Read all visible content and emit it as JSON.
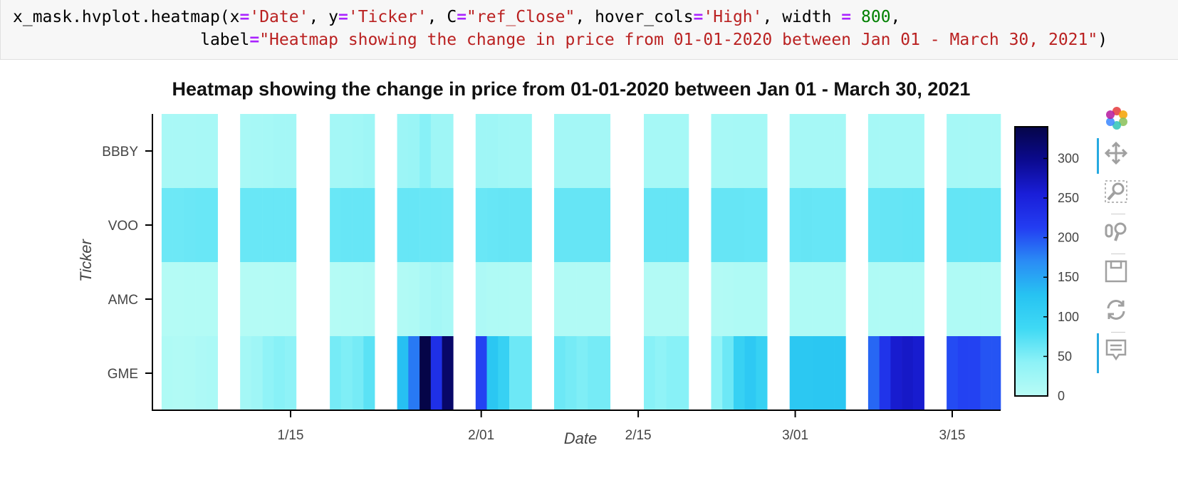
{
  "code": {
    "line1": [
      {
        "t": "x_mask.hvplot.heatmap(x",
        "c": ""
      },
      {
        "t": "=",
        "c": "op"
      },
      {
        "t": "'Date'",
        "c": "str"
      },
      {
        "t": ", y",
        "c": ""
      },
      {
        "t": "=",
        "c": "op"
      },
      {
        "t": "'Ticker'",
        "c": "str"
      },
      {
        "t": ", C",
        "c": ""
      },
      {
        "t": "=",
        "c": "op"
      },
      {
        "t": "\"ref_Close\"",
        "c": "str"
      },
      {
        "t": ", hover_cols",
        "c": ""
      },
      {
        "t": "=",
        "c": "op"
      },
      {
        "t": "'High'",
        "c": "str"
      },
      {
        "t": ", width ",
        "c": ""
      },
      {
        "t": "=",
        "c": "op"
      },
      {
        "t": " ",
        "c": ""
      },
      {
        "t": "800",
        "c": "num"
      },
      {
        "t": ",",
        "c": ""
      }
    ],
    "line2": [
      {
        "t": "                   label",
        "c": ""
      },
      {
        "t": "=",
        "c": "op"
      },
      {
        "t": "\"Heatmap showing the change in price from 01-01-2020 between Jan 01 - March 30, 2021\"",
        "c": "str"
      },
      {
        "t": ")",
        "c": ""
      }
    ]
  },
  "chart_data": {
    "type": "heatmap",
    "title": "Heatmap showing the change in price from 01-01-2020 between Jan 01 - March 30, 2021",
    "xlabel": "Date",
    "ylabel": "Ticker",
    "x_ticks": [
      "1/15",
      "2/01",
      "2/15",
      "3/01",
      "3/15"
    ],
    "y_categories": [
      "GME",
      "AMC",
      "VOO",
      "BBBY"
    ],
    "dates": [
      "2021-01-04",
      "2021-01-05",
      "2021-01-06",
      "2021-01-07",
      "2021-01-08",
      "2021-01-11",
      "2021-01-12",
      "2021-01-13",
      "2021-01-14",
      "2021-01-15",
      "2021-01-19",
      "2021-01-20",
      "2021-01-21",
      "2021-01-22",
      "2021-01-25",
      "2021-01-26",
      "2021-01-27",
      "2021-01-28",
      "2021-01-29",
      "2021-02-01",
      "2021-02-02",
      "2021-02-03",
      "2021-02-04",
      "2021-02-05",
      "2021-02-08",
      "2021-02-09",
      "2021-02-10",
      "2021-02-11",
      "2021-02-12",
      "2021-02-16",
      "2021-02-17",
      "2021-02-18",
      "2021-02-19",
      "2021-02-22",
      "2021-02-23",
      "2021-02-24",
      "2021-02-25",
      "2021-02-26",
      "2021-03-01",
      "2021-03-02",
      "2021-03-03",
      "2021-03-04",
      "2021-03-05",
      "2021-03-08",
      "2021-03-09",
      "2021-03-10",
      "2021-03-11",
      "2021-03-12",
      "2021-03-15",
      "2021-03-16",
      "2021-03-17",
      "2021-03-18",
      "2021-03-19"
    ],
    "series": [
      {
        "name": "GME",
        "values": [
          10,
          8,
          9,
          12,
          14,
          20,
          25,
          40,
          45,
          42,
          55,
          50,
          55,
          70,
          130,
          180,
          340,
          230,
          320,
          210,
          120,
          100,
          60,
          60,
          60,
          55,
          50,
          55,
          55,
          45,
          40,
          45,
          45,
          40,
          60,
          100,
          115,
          100,
          118,
          118,
          120,
          120,
          120,
          190,
          225,
          260,
          265,
          260,
          205,
          210,
          210,
          200,
          200
        ]
      },
      {
        "name": "AMC",
        "values": [
          5,
          5,
          6,
          6,
          6,
          5,
          5,
          5,
          6,
          6,
          5,
          6,
          6,
          7,
          8,
          10,
          15,
          20,
          16,
          12,
          10,
          10,
          9,
          9,
          8,
          8,
          8,
          8,
          8,
          7,
          7,
          7,
          7,
          7,
          8,
          10,
          10,
          10,
          10,
          10,
          10,
          10,
          10,
          10,
          10,
          10,
          10,
          10,
          10,
          10,
          10,
          10,
          10
        ]
      },
      {
        "name": "VOO",
        "values": [
          60,
          60,
          61,
          62,
          62,
          62,
          62,
          62,
          62,
          62,
          62,
          63,
          63,
          63,
          63,
          63,
          62,
          62,
          61,
          62,
          63,
          64,
          64,
          64,
          64,
          64,
          64,
          64,
          64,
          64,
          64,
          64,
          64,
          64,
          64,
          64,
          63,
          63,
          63,
          64,
          63,
          63,
          63,
          63,
          64,
          64,
          65,
          65,
          65,
          65,
          65,
          65,
          65
        ]
      },
      {
        "name": "BBBY",
        "values": [
          15,
          15,
          15,
          16,
          16,
          16,
          17,
          18,
          20,
          20,
          20,
          20,
          22,
          25,
          28,
          30,
          45,
          25,
          25,
          25,
          25,
          22,
          22,
          22,
          20,
          20,
          20,
          20,
          20,
          18,
          18,
          18,
          18,
          17,
          17,
          18,
          18,
          18,
          18,
          18,
          18,
          18,
          18,
          18,
          18,
          18,
          18,
          18,
          18,
          18,
          18,
          18,
          18
        ]
      }
    ],
    "colorbar": {
      "ticks": [
        0,
        50,
        100,
        150,
        200,
        250,
        300
      ],
      "range": [
        0,
        340
      ]
    },
    "colormap": [
      "#b9fcf5",
      "#8df2f7",
      "#3fd9f4",
      "#27c3f2",
      "#2a8cf5",
      "#233df2",
      "#1a1ed8",
      "#0b0a8f",
      "#050548"
    ]
  },
  "toolbar": {
    "tools": [
      {
        "name": "bokeh-logo-icon"
      },
      {
        "name": "pan-tool-icon"
      },
      {
        "name": "box-zoom-tool-icon"
      },
      {
        "name": "wheel-zoom-tool-icon"
      },
      {
        "name": "save-tool-icon"
      },
      {
        "name": "reset-tool-icon"
      },
      {
        "name": "hover-tool-icon"
      }
    ]
  }
}
